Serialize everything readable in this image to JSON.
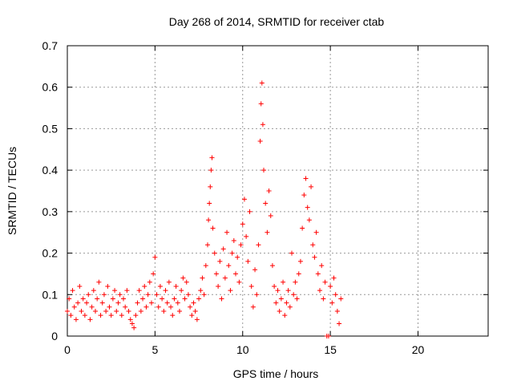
{
  "chart_data": {
    "type": "scatter",
    "title": "Day 268 of 2014, SRMTID for receiver ctab",
    "xlabel": "GPS time / hours",
    "ylabel": "SRMTID / TECUs",
    "xlim": [
      0,
      24
    ],
    "ylim": [
      0,
      0.7
    ],
    "x_ticks": [
      0,
      5,
      10,
      15,
      20
    ],
    "y_ticks": [
      0,
      0.1,
      0.2,
      0.3,
      0.4,
      0.5,
      0.6,
      0.7
    ],
    "x_tick_labels": [
      "0",
      "5",
      "10",
      "15",
      "20"
    ],
    "y_tick_labels": [
      "0",
      "0.1",
      "0.2",
      "0.3",
      "0.4",
      "0.5",
      "0.6",
      "0.7"
    ],
    "grid": true,
    "marker": "+",
    "color": "#ff0000",
    "series": [
      {
        "name": "SRMTID",
        "points": [
          [
            0.0,
            0.06
          ],
          [
            0.1,
            0.09
          ],
          [
            0.2,
            0.05
          ],
          [
            0.3,
            0.11
          ],
          [
            0.4,
            0.07
          ],
          [
            0.5,
            0.04
          ],
          [
            0.6,
            0.08
          ],
          [
            0.7,
            0.12
          ],
          [
            0.8,
            0.06
          ],
          [
            0.9,
            0.09
          ],
          [
            1.0,
            0.05
          ],
          [
            1.1,
            0.08
          ],
          [
            1.2,
            0.1
          ],
          [
            1.3,
            0.04
          ],
          [
            1.4,
            0.07
          ],
          [
            1.5,
            0.11
          ],
          [
            1.6,
            0.06
          ],
          [
            1.7,
            0.09
          ],
          [
            1.8,
            0.13
          ],
          [
            1.9,
            0.05
          ],
          [
            2.0,
            0.08
          ],
          [
            2.1,
            0.1
          ],
          [
            2.2,
            0.06
          ],
          [
            2.3,
            0.12
          ],
          [
            2.4,
            0.07
          ],
          [
            2.5,
            0.05
          ],
          [
            2.6,
            0.09
          ],
          [
            2.7,
            0.11
          ],
          [
            2.8,
            0.06
          ],
          [
            2.9,
            0.08
          ],
          [
            3.0,
            0.1
          ],
          [
            3.1,
            0.05
          ],
          [
            3.2,
            0.09
          ],
          [
            3.3,
            0.07
          ],
          [
            3.4,
            0.11
          ],
          [
            3.5,
            0.06
          ],
          [
            3.6,
            0.04
          ],
          [
            3.7,
            0.03
          ],
          [
            3.8,
            0.02
          ],
          [
            3.9,
            0.05
          ],
          [
            4.0,
            0.08
          ],
          [
            4.1,
            0.11
          ],
          [
            4.2,
            0.06
          ],
          [
            4.3,
            0.09
          ],
          [
            4.4,
            0.12
          ],
          [
            4.5,
            0.07
          ],
          [
            4.6,
            0.1
          ],
          [
            4.7,
            0.13
          ],
          [
            4.8,
            0.08
          ],
          [
            4.9,
            0.15
          ],
          [
            5.0,
            0.19
          ],
          [
            5.1,
            0.1
          ],
          [
            5.2,
            0.07
          ],
          [
            5.3,
            0.12
          ],
          [
            5.4,
            0.09
          ],
          [
            5.5,
            0.06
          ],
          [
            5.6,
            0.11
          ],
          [
            5.7,
            0.08
          ],
          [
            5.8,
            0.13
          ],
          [
            5.9,
            0.07
          ],
          [
            6.0,
            0.05
          ],
          [
            6.1,
            0.09
          ],
          [
            6.2,
            0.12
          ],
          [
            6.3,
            0.08
          ],
          [
            6.4,
            0.06
          ],
          [
            6.5,
            0.11
          ],
          [
            6.6,
            0.14
          ],
          [
            6.7,
            0.09
          ],
          [
            6.8,
            0.13
          ],
          [
            6.9,
            0.1
          ],
          [
            7.0,
            0.07
          ],
          [
            7.1,
            0.05
          ],
          [
            7.2,
            0.08
          ],
          [
            7.3,
            0.06
          ],
          [
            7.4,
            0.04
          ],
          [
            7.5,
            0.09
          ],
          [
            7.6,
            0.11
          ],
          [
            7.7,
            0.14
          ],
          [
            7.8,
            0.1
          ],
          [
            7.9,
            0.17
          ],
          [
            8.0,
            0.22
          ],
          [
            8.05,
            0.28
          ],
          [
            8.1,
            0.32
          ],
          [
            8.15,
            0.36
          ],
          [
            8.2,
            0.4
          ],
          [
            8.25,
            0.43
          ],
          [
            8.3,
            0.26
          ],
          [
            8.4,
            0.2
          ],
          [
            8.5,
            0.15
          ],
          [
            8.6,
            0.12
          ],
          [
            8.7,
            0.18
          ],
          [
            8.8,
            0.09
          ],
          [
            8.9,
            0.21
          ],
          [
            9.0,
            0.14
          ],
          [
            9.1,
            0.25
          ],
          [
            9.2,
            0.17
          ],
          [
            9.3,
            0.11
          ],
          [
            9.4,
            0.2
          ],
          [
            9.5,
            0.23
          ],
          [
            9.6,
            0.15
          ],
          [
            9.7,
            0.19
          ],
          [
            9.8,
            0.13
          ],
          [
            9.9,
            0.22
          ],
          [
            10.0,
            0.27
          ],
          [
            10.1,
            0.33
          ],
          [
            10.2,
            0.24
          ],
          [
            10.3,
            0.18
          ],
          [
            10.4,
            0.3
          ],
          [
            10.5,
            0.12
          ],
          [
            10.6,
            0.07
          ],
          [
            10.7,
            0.16
          ],
          [
            10.8,
            0.1
          ],
          [
            10.9,
            0.22
          ],
          [
            11.0,
            0.47
          ],
          [
            11.05,
            0.56
          ],
          [
            11.1,
            0.61
          ],
          [
            11.15,
            0.51
          ],
          [
            11.2,
            0.4
          ],
          [
            11.3,
            0.32
          ],
          [
            11.4,
            0.25
          ],
          [
            11.5,
            0.35
          ],
          [
            11.6,
            0.29
          ],
          [
            11.7,
            0.17
          ],
          [
            11.8,
            0.12
          ],
          [
            11.9,
            0.08
          ],
          [
            12.0,
            0.11
          ],
          [
            12.1,
            0.06
          ],
          [
            12.2,
            0.09
          ],
          [
            12.3,
            0.13
          ],
          [
            12.4,
            0.05
          ],
          [
            12.5,
            0.08
          ],
          [
            12.6,
            0.11
          ],
          [
            12.7,
            0.07
          ],
          [
            12.8,
            0.2
          ],
          [
            12.9,
            0.1
          ],
          [
            13.0,
            0.13
          ],
          [
            13.1,
            0.09
          ],
          [
            13.2,
            0.15
          ],
          [
            13.3,
            0.18
          ],
          [
            13.4,
            0.26
          ],
          [
            13.5,
            0.34
          ],
          [
            13.6,
            0.38
          ],
          [
            13.7,
            0.31
          ],
          [
            13.8,
            0.28
          ],
          [
            13.9,
            0.36
          ],
          [
            14.0,
            0.22
          ],
          [
            14.1,
            0.19
          ],
          [
            14.2,
            0.25
          ],
          [
            14.3,
            0.15
          ],
          [
            14.4,
            0.11
          ],
          [
            14.5,
            0.17
          ],
          [
            14.6,
            0.09
          ],
          [
            14.7,
            0.13
          ],
          [
            14.8,
            0.0
          ],
          [
            14.9,
            0.0
          ],
          [
            15.0,
            0.12
          ],
          [
            15.1,
            0.08
          ],
          [
            15.2,
            0.14
          ],
          [
            15.3,
            0.1
          ],
          [
            15.4,
            0.06
          ],
          [
            15.5,
            0.03
          ],
          [
            15.6,
            0.09
          ]
        ]
      }
    ]
  }
}
